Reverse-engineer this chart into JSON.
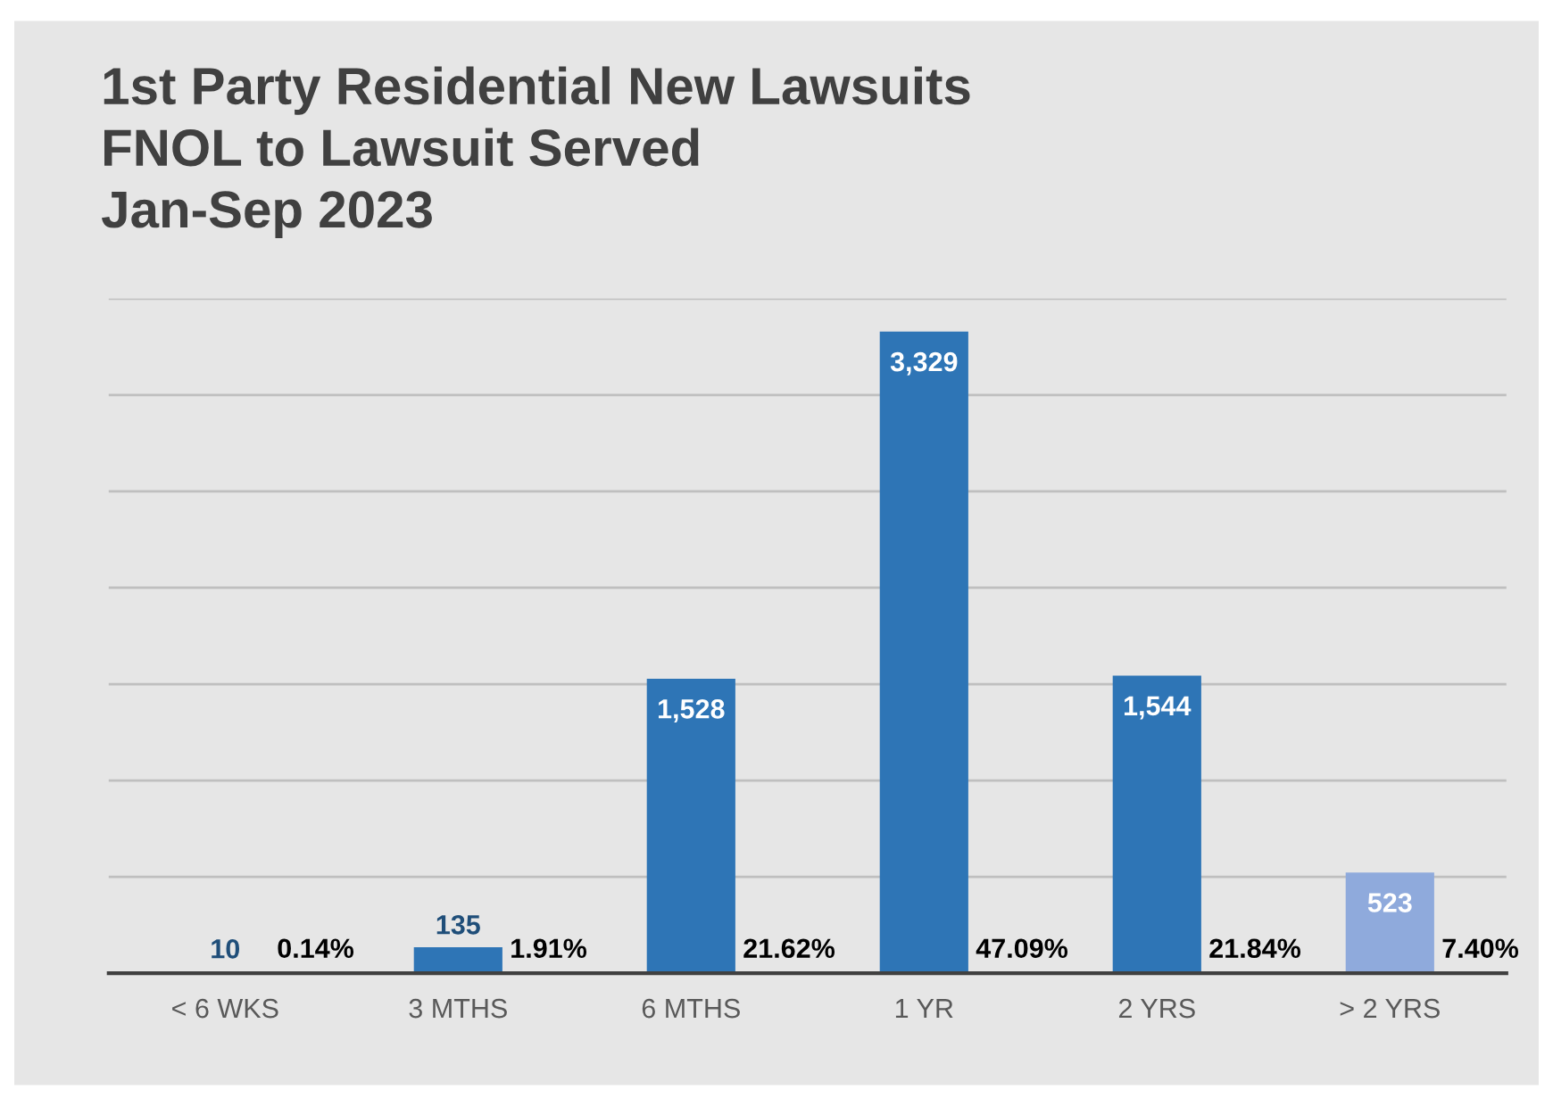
{
  "chart_data": {
    "type": "bar",
    "title": "1st Party Residential New Lawsuits\nFNOL to Lawsuit Served\nJan-Sep 2023",
    "categories": [
      "< 6 WKS",
      "3 MTHS",
      "6 MTHS",
      "1 YR",
      "2 YRS",
      "> 2 YRS"
    ],
    "values": [
      10,
      135,
      1528,
      3329,
      1544,
      523
    ],
    "colors": [
      "#2e75b6",
      "#2e75b6",
      "#2e75b6",
      "#2e75b6",
      "#2e75b6",
      "#8faadc"
    ],
    "value_labels": [
      "10",
      "135",
      "1,528",
      "3,329",
      "1,544",
      "523"
    ],
    "ylim": [
      0,
      3500
    ],
    "yticks": [
      {
        "value": 0,
        "label": null
      },
      {
        "value": 500,
        "label": null
      },
      {
        "value": 1000,
        "label": null
      },
      {
        "value": 1500,
        "label": null
      },
      {
        "value": 2000,
        "label": null
      },
      {
        "value": 2500,
        "label": null
      },
      {
        "value": 3000,
        "label": null
      },
      {
        "value": 3500,
        "label": null
      }
    ],
    "tick_labels": "x",
    "grid": "y",
    "annotations": [
      {
        "text": "0.14%",
        "x": "< 6 WKS",
        "y": 0
      },
      {
        "text": "1.91%",
        "x": "3 MTHS",
        "y": 0
      },
      {
        "text": "21.62%",
        "x": "6 MTHS",
        "y": 0
      },
      {
        "text": "47.09%",
        "x": "1 YR",
        "y": 0
      },
      {
        "text": "21.84%",
        "x": "2 YRS",
        "y": 0
      },
      {
        "text": "7.40%",
        "x": "> 2 YRS",
        "y": 0
      }
    ]
  }
}
